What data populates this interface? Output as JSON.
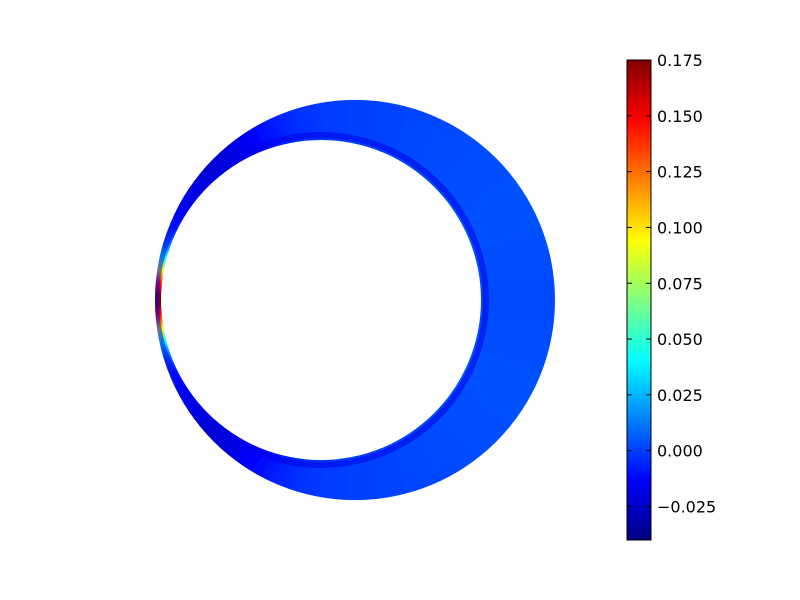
{
  "chart_data": {
    "type": "heatmap",
    "title": "",
    "subtitle": "",
    "geometry": "eccentric annulus (journal bearing gap)",
    "outer_circle": {
      "center": [
        0.0,
        0.0
      ],
      "radius": 1.0
    },
    "inner_circle": {
      "center": [
        -0.17,
        0.0
      ],
      "radius": 0.8
    },
    "field": {
      "description": "scalar field on annular gap, peak in the narrowest gap",
      "peak_value": 0.175,
      "peak_angle_deg": 180,
      "minimum_value": -0.04,
      "background_value": 0.0
    },
    "colorbar": {
      "colormap": "jet",
      "vmin": -0.04,
      "vmax": 0.175,
      "ticks": [
        -0.025,
        0.0,
        0.025,
        0.05,
        0.075,
        0.1,
        0.125,
        0.15,
        0.175
      ],
      "tick_labels": [
        "−0.025",
        "0.000",
        "0.025",
        "0.050",
        "0.075",
        "0.100",
        "0.125",
        "0.150",
        "0.175"
      ],
      "placement": "right"
    },
    "grid": false,
    "axes_visible": false
  }
}
